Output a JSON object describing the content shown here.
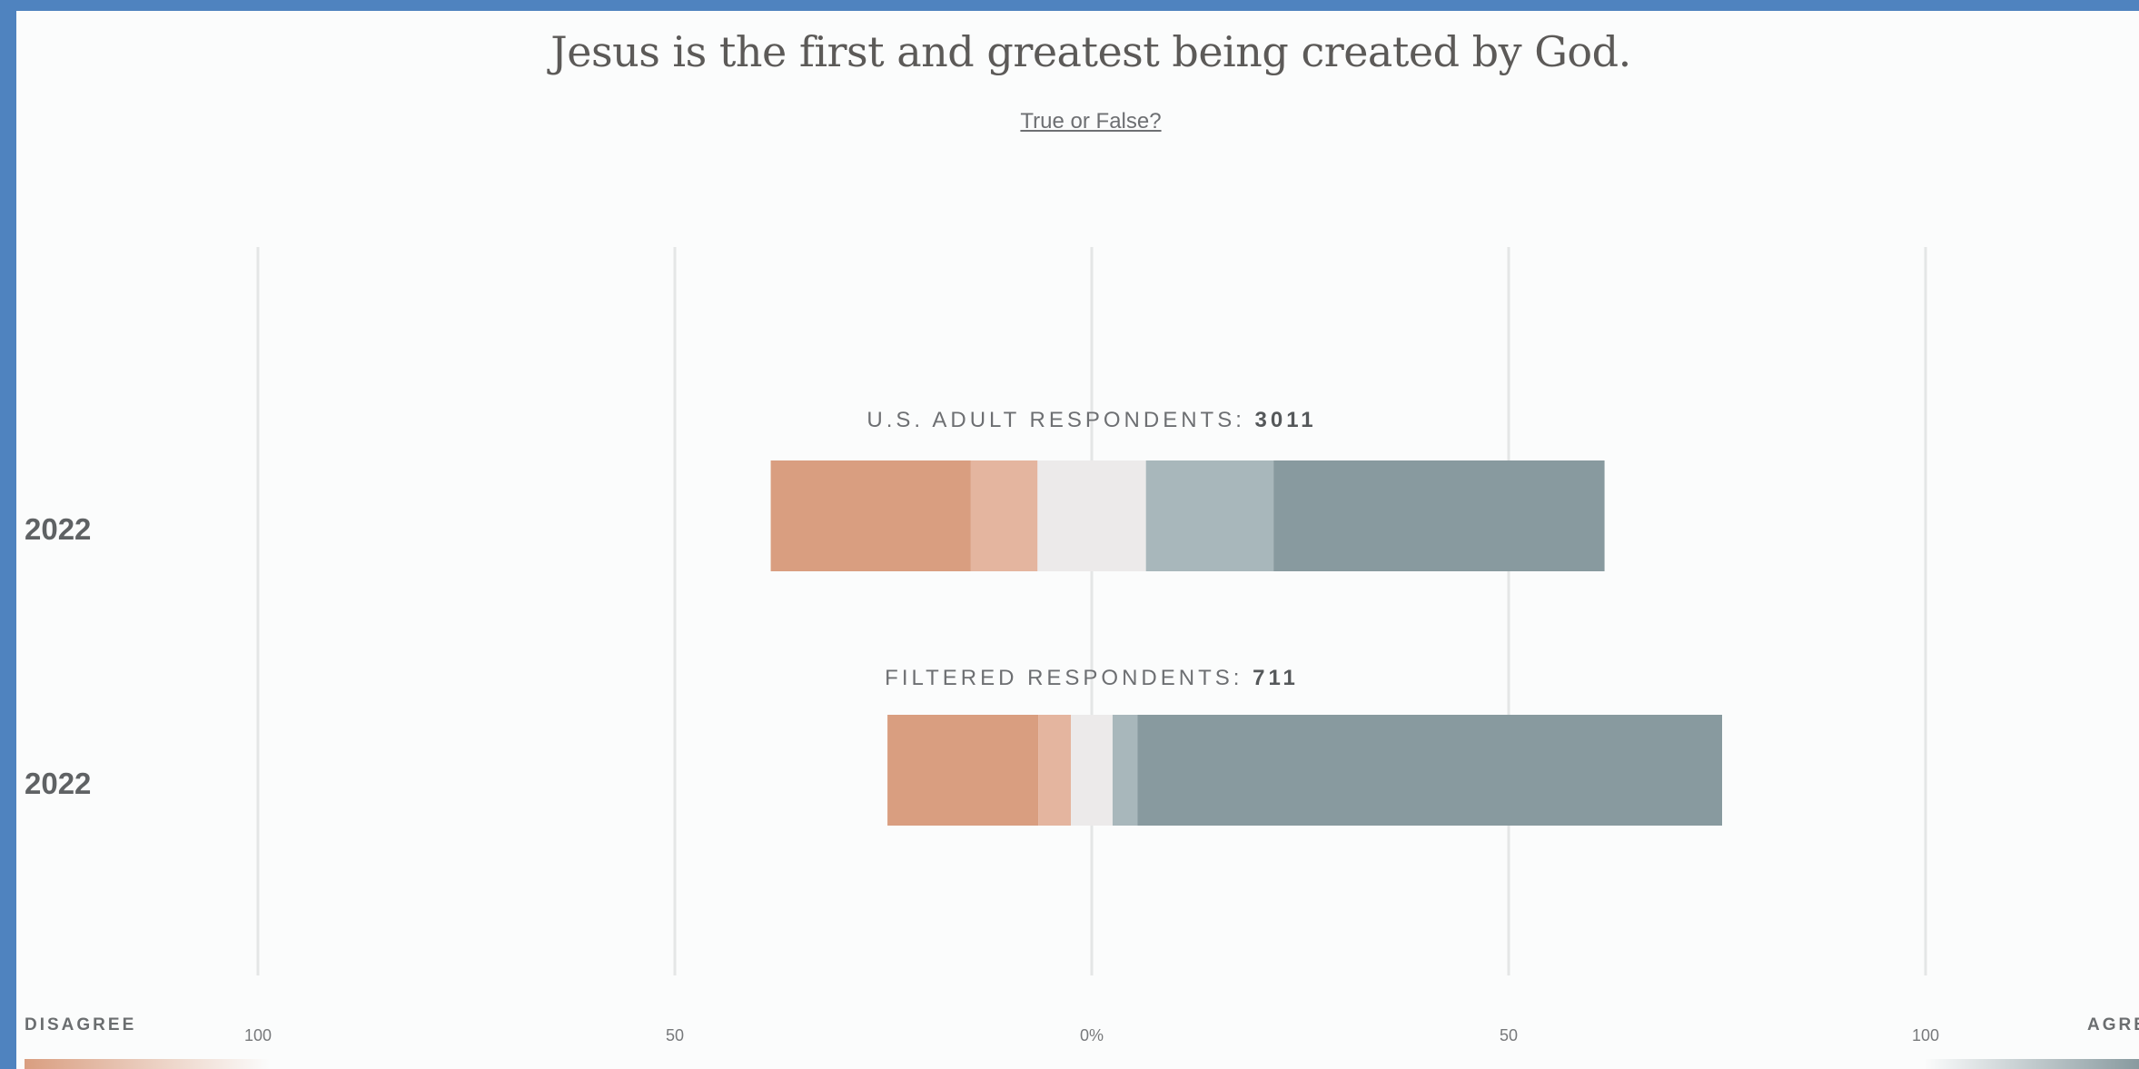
{
  "title": "Jesus is the first and greatest being created by God.",
  "subtitle_link": "True or False?",
  "legend": {
    "left_label": "DISAGREE",
    "right_label": "AGRE",
    "disagree_color": "#d99e80",
    "agree_color": "#889a9f"
  },
  "chart_data": {
    "type": "bar",
    "orientation": "horizontal-diverging",
    "x_ticks": [
      "100",
      "50",
      "0%",
      "50",
      "100"
    ],
    "xlim": [
      -100,
      100
    ],
    "grid": true,
    "segment_colors": [
      "#d99e80",
      "#e4b59f",
      "#eceaea",
      "#a8b7bb",
      "#889a9f"
    ],
    "rows": [
      {
        "year": "2022",
        "label_prefix": "U.S. ADULT RESPONDENTS: ",
        "label_count": "3011",
        "segments": [
          {
            "start": -38.5,
            "end": -14.5
          },
          {
            "start": -14.5,
            "end": -6.5
          },
          {
            "start": -6.5,
            "end": 6.5
          },
          {
            "start": 6.5,
            "end": 21.8
          },
          {
            "start": 21.8,
            "end": 61.5
          }
        ]
      },
      {
        "year": "2022",
        "label_prefix": "FILTERED RESPONDENTS: ",
        "label_count": "711",
        "segments": [
          {
            "start": -24.5,
            "end": -6.4
          },
          {
            "start": -6.4,
            "end": -2.5
          },
          {
            "start": -2.5,
            "end": 2.5
          },
          {
            "start": 2.5,
            "end": 5.5
          },
          {
            "start": 5.5,
            "end": 75.6
          }
        ]
      }
    ]
  }
}
